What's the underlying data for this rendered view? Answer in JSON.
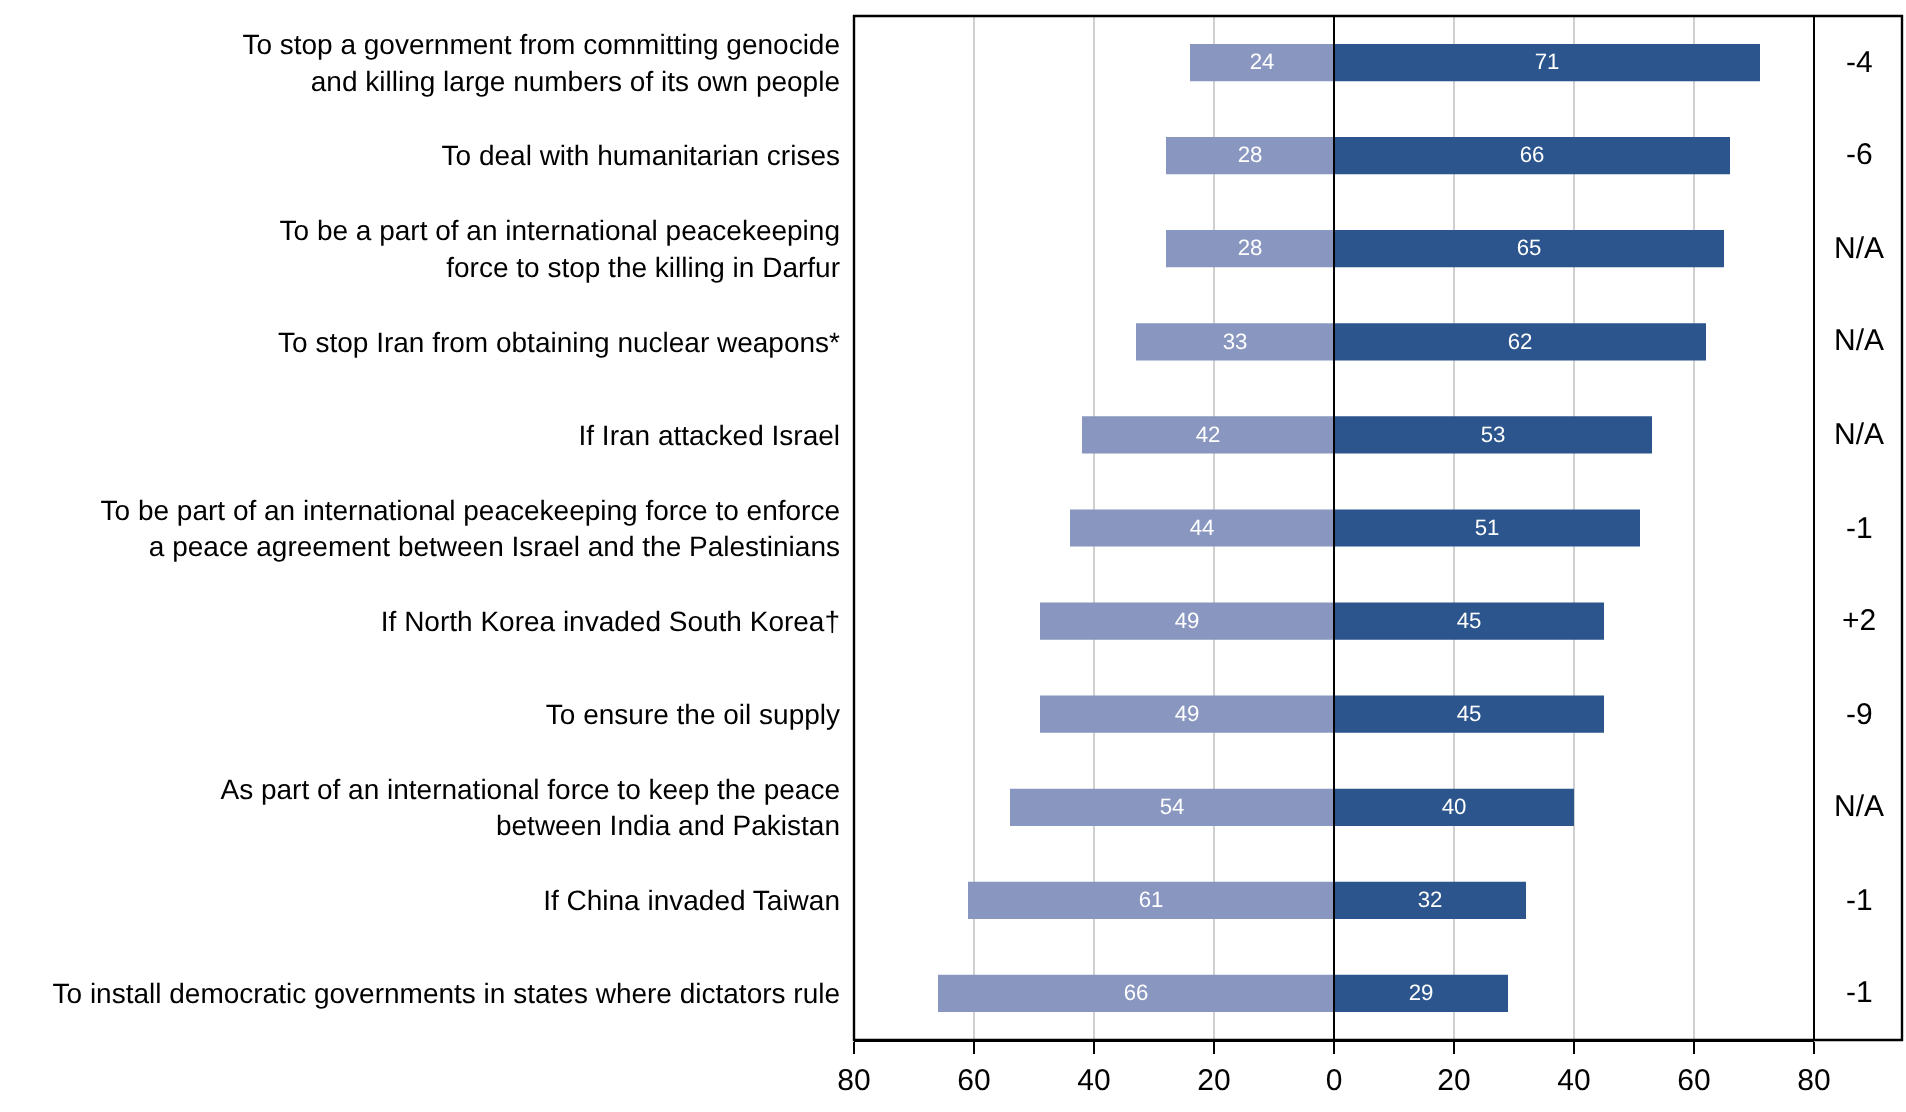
{
  "chart_data": [
    {
      "type": "bar",
      "orientation": "horizontal",
      "data_labels": true,
      "grid": "x",
      "categories": [
        "To stop a government from committing genocide\nand killing large numbers of its own people",
        "To deal with humanitarian crises",
        "To be a part of an international peacekeeping\nforce to stop the killing in Darfur",
        "To stop Iran from obtaining nuclear weapons*",
        "If Iran attacked Israel",
        "To be part of an international peacekeeping force to enforce\na peace agreement between Israel and the Palestinians",
        "If North Korea invaded South Korea†",
        "To ensure the oil supply",
        "As part of an international force to keep the peace\nbetween India and Pakistan",
        "If China invaded Taiwan",
        "To install democratic governments in states where dictators rule"
      ],
      "series": [
        {
          "color": "#8896c0",
          "values": [
            24,
            28,
            28,
            33,
            42,
            44,
            49,
            49,
            54,
            61,
            66
          ]
        }
      ],
      "xlim": [
        80,
        0
      ],
      "xticks": [
        80,
        60,
        40,
        20
      ]
    },
    {
      "type": "bar",
      "orientation": "horizontal",
      "data_labels": true,
      "grid": "x",
      "tick_labels": "x",
      "categories": [
        null,
        null,
        null,
        null,
        null,
        null,
        null,
        null,
        null,
        null,
        null
      ],
      "series": [
        {
          "color": "#2b558c",
          "values": [
            71,
            66,
            65,
            62,
            53,
            51,
            45,
            45,
            40,
            32,
            29
          ]
        }
      ],
      "xlim": [
        0,
        80
      ],
      "xticks": [
        0,
        20,
        40,
        60,
        80
      ],
      "annotations": [
        "-4",
        "-6",
        "N/A",
        "N/A",
        "N/A",
        "-1",
        "+2",
        "-9",
        "N/A",
        "-1",
        "-1"
      ]
    }
  ]
}
